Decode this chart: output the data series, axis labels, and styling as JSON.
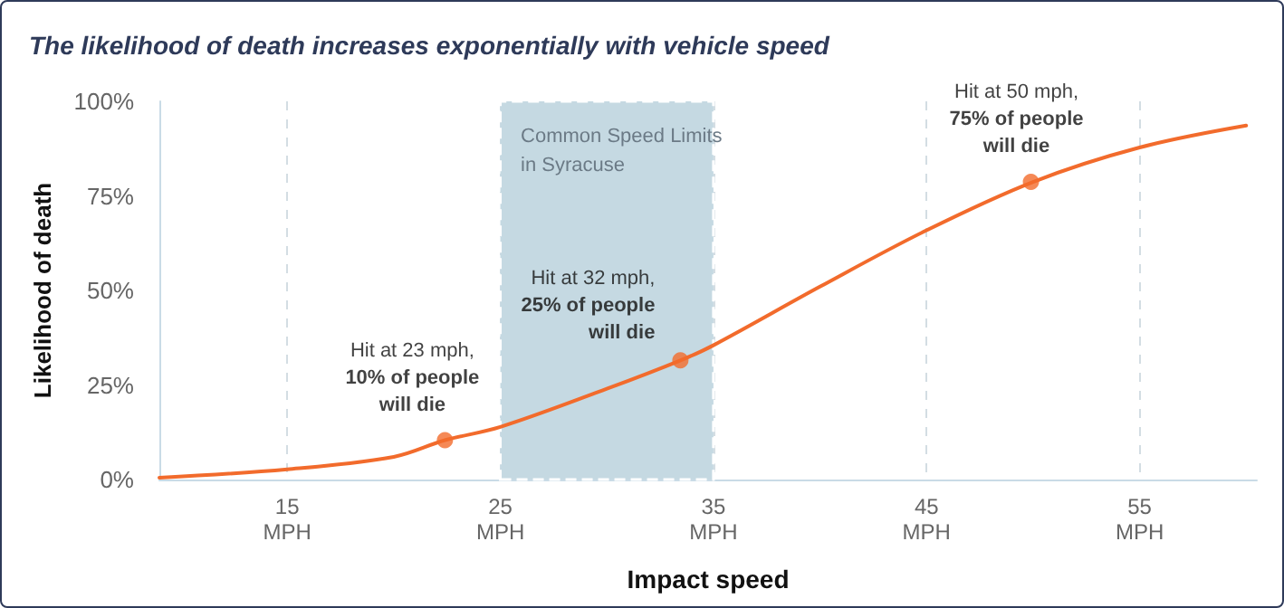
{
  "chart_data": {
    "type": "line",
    "title": "The likelihood of death increases exponentially with vehicle speed",
    "xlabel": "Impact speed",
    "ylabel": "Likelihood of death",
    "series": [
      {
        "color": "#f26b2c",
        "x": [
          9,
          15,
          20,
          22.4,
          25,
          30,
          33.45,
          35,
          40,
          45,
          50,
          55,
          60
        ],
        "values": [
          0.5,
          2.7,
          6,
          10.4,
          13.9,
          24,
          31.5,
          35.5,
          51,
          65.9,
          78.7,
          87.8,
          93.6
        ]
      },
      {
        "type": "scatter",
        "color": "#f26b2c",
        "x": [
          22.4,
          33.45,
          49.9
        ],
        "values": [
          10.4,
          31.5,
          78.7
        ]
      }
    ],
    "xlim": [
      9,
      60.5
    ],
    "ylim": [
      0,
      100
    ],
    "xticks": [
      {
        "value": 15,
        "label": "15\nMPH"
      },
      {
        "value": 25,
        "label": "25\nMPH"
      },
      {
        "value": 35,
        "label": "35\nMPH"
      },
      {
        "value": 45,
        "label": "45\nMPH"
      },
      {
        "value": 55,
        "label": "55\nMPH"
      }
    ],
    "yticks": [
      {
        "value": 0,
        "label": "0%"
      },
      {
        "value": 25,
        "label": "25%"
      },
      {
        "value": 50,
        "label": "50%"
      },
      {
        "value": 75,
        "label": "75%"
      },
      {
        "value": 100,
        "label": "100%"
      }
    ],
    "grid": "x",
    "line_style": "solid",
    "bands": [
      {
        "axis": "x",
        "from": 25,
        "to": 35,
        "label": "Common Speed Limits\nin Syracuse",
        "color": "#c5d9e2"
      }
    ],
    "annotations": [
      {
        "text": "Hit at 23 mph,\n10% of people\nwill die",
        "x": 22.4,
        "y": 10.4
      },
      {
        "text": "Hit at 32 mph,\n25% of people\nwill die",
        "x": 33.45,
        "y": 31.5
      },
      {
        "text": "Hit at 50 mph,\n75% of people\nwill die",
        "x": 49.9,
        "y": 78.7
      }
    ]
  }
}
